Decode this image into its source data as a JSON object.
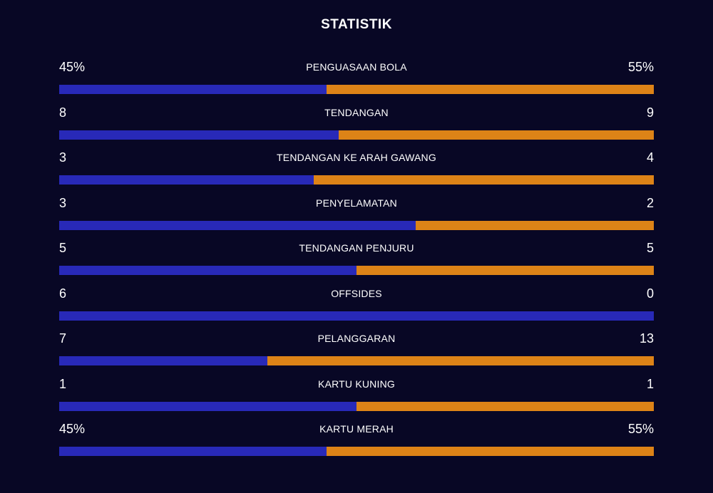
{
  "title": "STATISTIK",
  "colors": {
    "background": "#080725",
    "home": "#2829b8",
    "away": "#dd8317"
  },
  "stats": [
    {
      "label": "PENGUASAAN BOLA",
      "home": "45%",
      "away": "55%",
      "home_share": 0.45
    },
    {
      "label": "TENDANGAN",
      "home": "8",
      "away": "9",
      "home_share": 0.4706
    },
    {
      "label": "TENDANGAN KE ARAH GAWANG",
      "home": "3",
      "away": "4",
      "home_share": 0.4286
    },
    {
      "label": "PENYELAMATAN",
      "home": "3",
      "away": "2",
      "home_share": 0.6
    },
    {
      "label": "TENDANGAN PENJURU",
      "home": "5",
      "away": "5",
      "home_share": 0.5
    },
    {
      "label": "OFFSIDES",
      "home": "6",
      "away": "0",
      "home_share": 1.0
    },
    {
      "label": "PELANGGARAN",
      "home": "7",
      "away": "13",
      "home_share": 0.35
    },
    {
      "label": "KARTU KUNING",
      "home": "1",
      "away": "1",
      "home_share": 0.5
    },
    {
      "label": "KARTU MERAH",
      "home": "45%",
      "away": "55%",
      "home_share": 0.45
    }
  ]
}
